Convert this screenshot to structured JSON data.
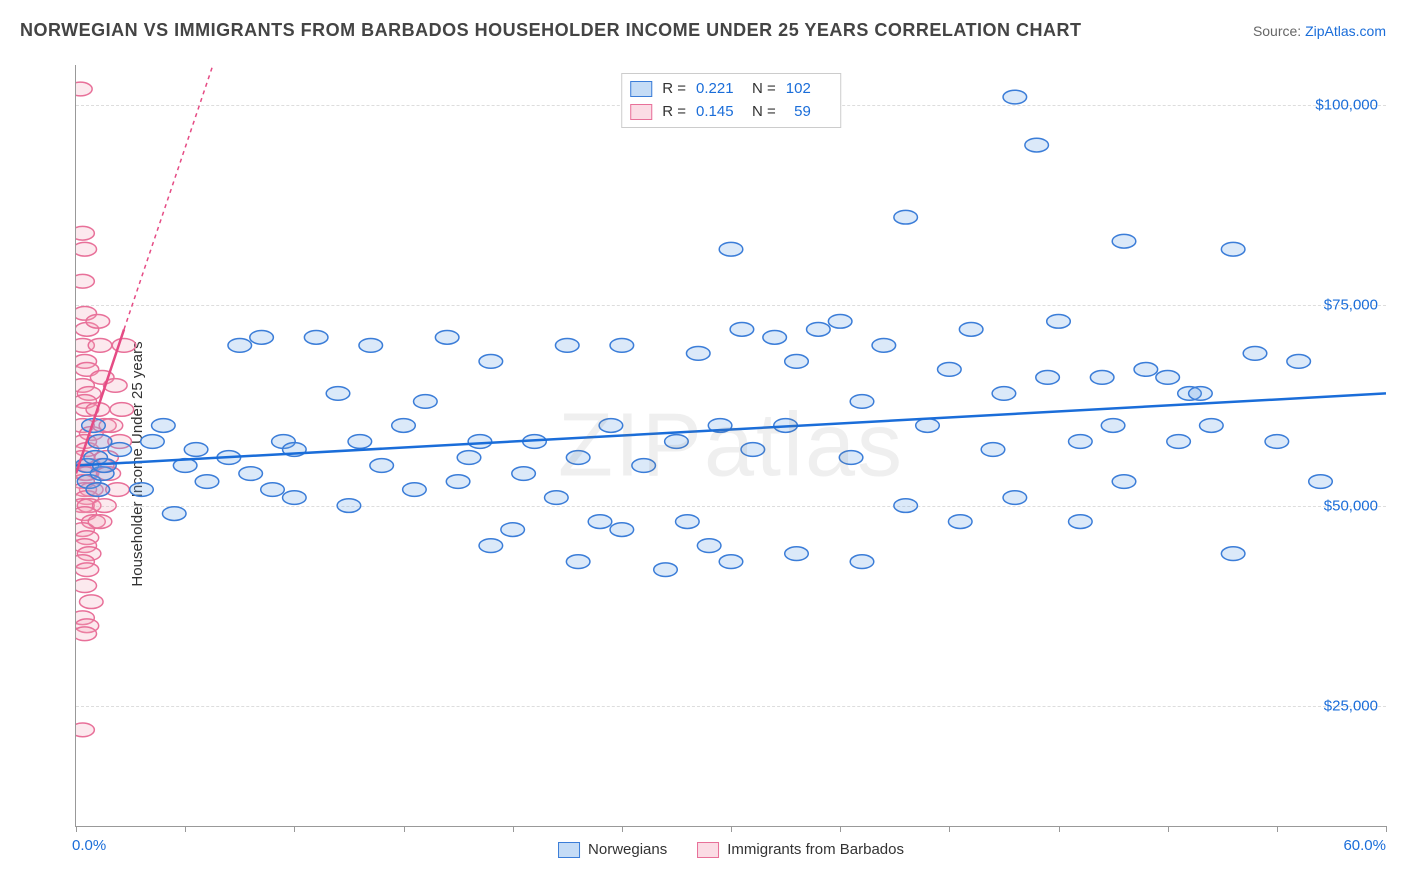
{
  "header": {
    "title": "NORWEGIAN VS IMMIGRANTS FROM BARBADOS HOUSEHOLDER INCOME UNDER 25 YEARS CORRELATION CHART",
    "source_prefix": "Source: ",
    "source_name": "ZipAtlas.com"
  },
  "chart": {
    "type": "scatter",
    "y_axis_label": "Householder Income Under 25 years",
    "watermark": "ZIPatlas",
    "background_color": "#ffffff",
    "grid_color": "#dddddd",
    "axis_color": "#999999",
    "xlim": [
      0,
      60
    ],
    "ylim": [
      10000,
      105000
    ],
    "x_tick_count": 12,
    "x_min_label": "0.0%",
    "x_max_label": "60.0%",
    "y_ticks": [
      {
        "value": 25000,
        "label": "$25,000"
      },
      {
        "value": 50000,
        "label": "$50,000"
      },
      {
        "value": 75000,
        "label": "$75,000"
      },
      {
        "value": 100000,
        "label": "$100,000"
      }
    ],
    "marker_radius": 9,
    "marker_stroke_width": 1.5,
    "marker_fill_opacity": 0.25,
    "regression_line_width_solid": 2.5,
    "series": [
      {
        "name": "Norwegians",
        "color": "#6fa8e8",
        "stroke": "#3b7dd8",
        "line_color": "#1a6dd9",
        "R": 0.221,
        "N": 102,
        "regression": {
          "x1": 0,
          "y1": 55000,
          "x2": 60,
          "y2": 64000,
          "dash": "none"
        },
        "points": [
          [
            0.5,
            55000
          ],
          [
            0.6,
            53000
          ],
          [
            0.8,
            60000
          ],
          [
            0.9,
            56000
          ],
          [
            1.0,
            52000
          ],
          [
            1.1,
            58000
          ],
          [
            1.2,
            54000
          ],
          [
            1.3,
            55000
          ],
          [
            2,
            57000
          ],
          [
            3,
            52000
          ],
          [
            3.5,
            58000
          ],
          [
            4,
            60000
          ],
          [
            4.5,
            49000
          ],
          [
            5,
            55000
          ],
          [
            5.5,
            57000
          ],
          [
            6,
            53000
          ],
          [
            7,
            56000
          ],
          [
            7.5,
            70000
          ],
          [
            8,
            54000
          ],
          [
            8.5,
            71000
          ],
          [
            9,
            52000
          ],
          [
            9.5,
            58000
          ],
          [
            10,
            57000
          ],
          [
            10,
            51000
          ],
          [
            11,
            71000
          ],
          [
            12,
            64000
          ],
          [
            12.5,
            50000
          ],
          [
            13,
            58000
          ],
          [
            13.5,
            70000
          ],
          [
            14,
            55000
          ],
          [
            15,
            60000
          ],
          [
            15.5,
            52000
          ],
          [
            16,
            63000
          ],
          [
            17,
            71000
          ],
          [
            17.5,
            53000
          ],
          [
            18,
            56000
          ],
          [
            18.5,
            58000
          ],
          [
            19,
            68000
          ],
          [
            19,
            45000
          ],
          [
            20,
            47000
          ],
          [
            20.5,
            54000
          ],
          [
            21,
            58000
          ],
          [
            22,
            51000
          ],
          [
            22.5,
            70000
          ],
          [
            23,
            56000
          ],
          [
            23,
            43000
          ],
          [
            24,
            48000
          ],
          [
            24.5,
            60000
          ],
          [
            25,
            47000
          ],
          [
            25,
            70000
          ],
          [
            26,
            55000
          ],
          [
            27,
            42000
          ],
          [
            27.5,
            58000
          ],
          [
            28,
            48000
          ],
          [
            28.5,
            69000
          ],
          [
            29,
            45000
          ],
          [
            29.5,
            60000
          ],
          [
            30,
            82000
          ],
          [
            30,
            43000
          ],
          [
            30.5,
            72000
          ],
          [
            31,
            57000
          ],
          [
            32,
            71000
          ],
          [
            32.5,
            60000
          ],
          [
            33,
            68000
          ],
          [
            33,
            44000
          ],
          [
            34,
            72000
          ],
          [
            35,
            73000
          ],
          [
            35.5,
            56000
          ],
          [
            36,
            43000
          ],
          [
            36,
            63000
          ],
          [
            37,
            70000
          ],
          [
            38,
            86000
          ],
          [
            38,
            50000
          ],
          [
            39,
            60000
          ],
          [
            40,
            67000
          ],
          [
            40.5,
            48000
          ],
          [
            41,
            72000
          ],
          [
            42,
            57000
          ],
          [
            42.5,
            64000
          ],
          [
            43,
            101000
          ],
          [
            43,
            51000
          ],
          [
            44,
            95000
          ],
          [
            44.5,
            66000
          ],
          [
            45,
            73000
          ],
          [
            46,
            58000
          ],
          [
            46,
            48000
          ],
          [
            47,
            66000
          ],
          [
            47.5,
            60000
          ],
          [
            48,
            83000
          ],
          [
            48,
            53000
          ],
          [
            49,
            67000
          ],
          [
            50,
            66000
          ],
          [
            50.5,
            58000
          ],
          [
            51,
            64000
          ],
          [
            51.5,
            64000
          ],
          [
            52,
            60000
          ],
          [
            53,
            82000
          ],
          [
            53,
            44000
          ],
          [
            54,
            69000
          ],
          [
            55,
            58000
          ],
          [
            56,
            68000
          ],
          [
            57,
            53000
          ]
        ]
      },
      {
        "name": "Immigrants from Barbados",
        "color": "#f5a8bd",
        "stroke": "#e87099",
        "line_color": "#e54b84",
        "R": 0.145,
        "N": 59,
        "regression": {
          "x1": 0,
          "y1": 54000,
          "x2": 2.2,
          "y2": 72000,
          "dash": "none"
        },
        "regression_ext": {
          "x1": 2.2,
          "y1": 72000,
          "x2": 8,
          "y2": 119000,
          "dash": "4,4"
        },
        "points": [
          [
            0.2,
            102000
          ],
          [
            0.3,
            84000
          ],
          [
            0.4,
            82000
          ],
          [
            0.3,
            78000
          ],
          [
            0.4,
            74000
          ],
          [
            0.5,
            72000
          ],
          [
            0.3,
            70000
          ],
          [
            0.4,
            68000
          ],
          [
            0.5,
            67000
          ],
          [
            0.3,
            65000
          ],
          [
            0.6,
            64000
          ],
          [
            0.4,
            63000
          ],
          [
            0.5,
            62000
          ],
          [
            0.3,
            60000
          ],
          [
            0.7,
            59000
          ],
          [
            0.4,
            58000
          ],
          [
            0.5,
            57000
          ],
          [
            0.3,
            56000
          ],
          [
            0.6,
            55000
          ],
          [
            0.4,
            54000
          ],
          [
            0.5,
            54000
          ],
          [
            0.3,
            53000
          ],
          [
            0.7,
            52000
          ],
          [
            0.4,
            52000
          ],
          [
            0.5,
            51000
          ],
          [
            0.3,
            50000
          ],
          [
            0.6,
            50000
          ],
          [
            0.4,
            49000
          ],
          [
            0.8,
            48000
          ],
          [
            0.3,
            47000
          ],
          [
            0.5,
            46000
          ],
          [
            0.4,
            45000
          ],
          [
            0.6,
            44000
          ],
          [
            0.3,
            43000
          ],
          [
            0.5,
            42000
          ],
          [
            0.4,
            40000
          ],
          [
            0.7,
            38000
          ],
          [
            0.3,
            36000
          ],
          [
            0.5,
            35000
          ],
          [
            0.4,
            34000
          ],
          [
            0.3,
            22000
          ],
          [
            1.0,
            73000
          ],
          [
            1.1,
            70000
          ],
          [
            1.2,
            66000
          ],
          [
            1.0,
            62000
          ],
          [
            1.3,
            60000
          ],
          [
            1.1,
            58000
          ],
          [
            1.4,
            56000
          ],
          [
            1.2,
            55000
          ],
          [
            1.5,
            54000
          ],
          [
            1.0,
            52000
          ],
          [
            1.3,
            50000
          ],
          [
            1.1,
            48000
          ],
          [
            1.6,
            60000
          ],
          [
            1.8,
            65000
          ],
          [
            2.0,
            58000
          ],
          [
            2.2,
            70000
          ],
          [
            1.9,
            52000
          ],
          [
            2.1,
            62000
          ]
        ]
      }
    ]
  },
  "legend_bottom": [
    {
      "label": "Norwegians",
      "series": 0
    },
    {
      "label": "Immigrants from Barbados",
      "series": 1
    }
  ]
}
